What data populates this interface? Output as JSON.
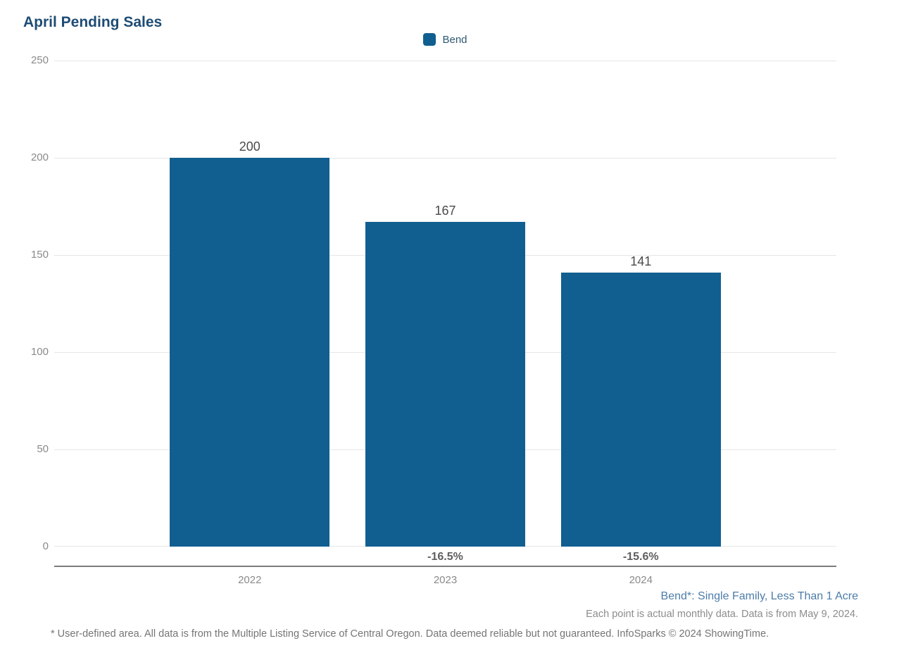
{
  "title": "April Pending Sales",
  "colors": {
    "bar": "#115F90",
    "title": "#1E4C74",
    "legend_text": "#2F5871",
    "value_label": "#4A4A4A",
    "tick_label": "#8A8A8A",
    "pct_label": "#5F5F5F",
    "annotation_blue": "#4D7CA9",
    "note_gray": "#8C8C8C",
    "footer_gray": "#757575",
    "gridline": "#E6E6E6",
    "axis_line": "#7C7C7C"
  },
  "chart_data": {
    "type": "bar",
    "title": "April Pending Sales",
    "categories": [
      "2022",
      "2023",
      "2024"
    ],
    "series": [
      {
        "name": "Bend",
        "color": "#115F90",
        "values": [
          200,
          167,
          141
        ]
      }
    ],
    "bar_labels": [
      "200",
      "167",
      "141"
    ],
    "pct_change": [
      "",
      "-16.5%",
      "-15.6%"
    ],
    "xlabel": "",
    "ylabel": "",
    "ylim": [
      0,
      250
    ],
    "yticks": [
      250,
      200,
      150,
      100,
      50,
      0
    ],
    "grid": true,
    "legend_position": "top-center"
  },
  "annotations": {
    "series_note": "Bend*: Single Family, Less Than 1 Acre",
    "data_note": "Each point is actual monthly data. Data is from May 9, 2024.",
    "footer": "* User-defined area. All data is from the Multiple Listing Service of Central Oregon. Data deemed reliable but not guaranteed. InfoSparks © 2024 ShowingTime."
  }
}
